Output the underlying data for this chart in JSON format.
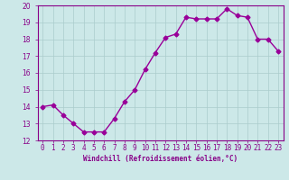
{
  "x": [
    0,
    1,
    2,
    3,
    4,
    5,
    6,
    7,
    8,
    9,
    10,
    11,
    12,
    13,
    14,
    15,
    16,
    17,
    18,
    19,
    20,
    21,
    22,
    23
  ],
  "y": [
    14.0,
    14.1,
    13.5,
    13.0,
    12.5,
    12.5,
    12.5,
    13.3,
    14.3,
    15.0,
    16.2,
    17.2,
    18.1,
    18.3,
    19.3,
    19.2,
    19.2,
    19.2,
    19.8,
    19.4,
    19.3,
    18.0,
    18.0,
    17.3
  ],
  "line_color": "#990099",
  "marker": "D",
  "markersize": 2.5,
  "linewidth": 1.0,
  "xlabel": "Windchill (Refroidissement éolien,°C)",
  "xlabel_fontsize": 5.5,
  "ylim": [
    12,
    20
  ],
  "xlim": [
    -0.5,
    23.5
  ],
  "yticks": [
    12,
    13,
    14,
    15,
    16,
    17,
    18,
    19,
    20
  ],
  "xtick_labels": [
    "0",
    "1",
    "2",
    "3",
    "4",
    "5",
    "6",
    "7",
    "8",
    "9",
    "10",
    "11",
    "12",
    "13",
    "14",
    "15",
    "16",
    "17",
    "18",
    "19",
    "20",
    "21",
    "22",
    "23"
  ],
  "bg_color": "#cce8e8",
  "grid_color": "#aacccc",
  "tick_color": "#880088",
  "tick_fontsize": 5.5,
  "spine_color": "#880088"
}
